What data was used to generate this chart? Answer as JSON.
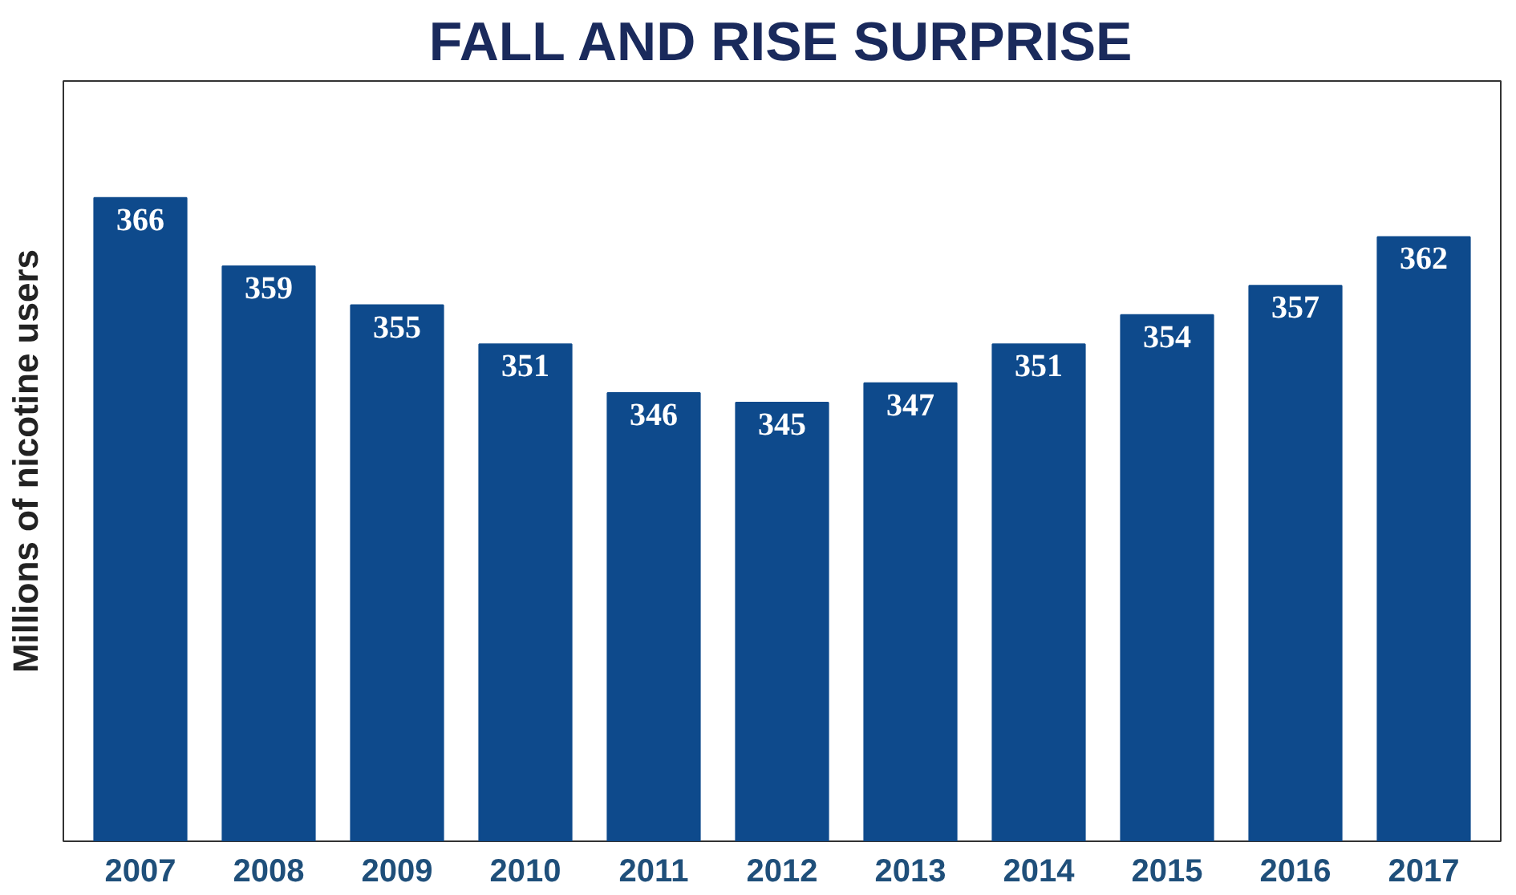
{
  "chart_data": {
    "type": "bar",
    "title": "FALL AND RISE SURPRISE",
    "ylabel": "Millions of nicotine users",
    "categories": [
      "2007",
      "2008",
      "2009",
      "2010",
      "2011",
      "2012",
      "2013",
      "2014",
      "2015",
      "2016",
      "2017"
    ],
    "values": [
      366,
      359,
      355,
      351,
      346,
      345,
      347,
      351,
      354,
      357,
      362
    ],
    "color": "#0e4a8c",
    "ylim": [
      300,
      378
    ],
    "tick_labels": "x",
    "data_labels": true,
    "grid": false
  }
}
